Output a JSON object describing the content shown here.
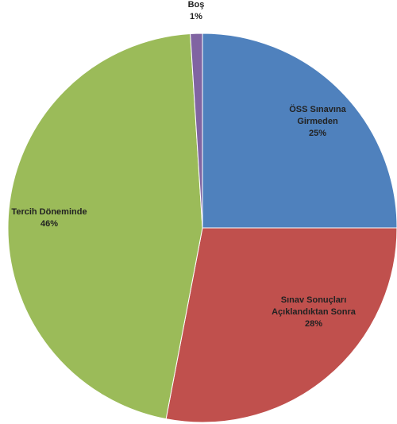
{
  "chart_data": {
    "type": "pie",
    "title": "",
    "start": "12 o'clock, clockwise",
    "slices": [
      {
        "label_lines": [
          "ÖSS  Sınavına",
          "Girmeden"
        ],
        "value_label": "25%",
        "value": 25,
        "color": "#4F81BD"
      },
      {
        "label_lines": [
          "Sınav Sonuçları",
          "Açıklandıktan Sonra"
        ],
        "value_label": "28%",
        "value": 28,
        "color": "#C0504D"
      },
      {
        "label_lines": [
          "Tercih Döneminde"
        ],
        "value_label": "46%",
        "value": 46,
        "color": "#9BBB59"
      },
      {
        "label_lines": [
          "Boş"
        ],
        "value_label": "1%",
        "value": 1,
        "color": "#8064A2"
      }
    ]
  }
}
